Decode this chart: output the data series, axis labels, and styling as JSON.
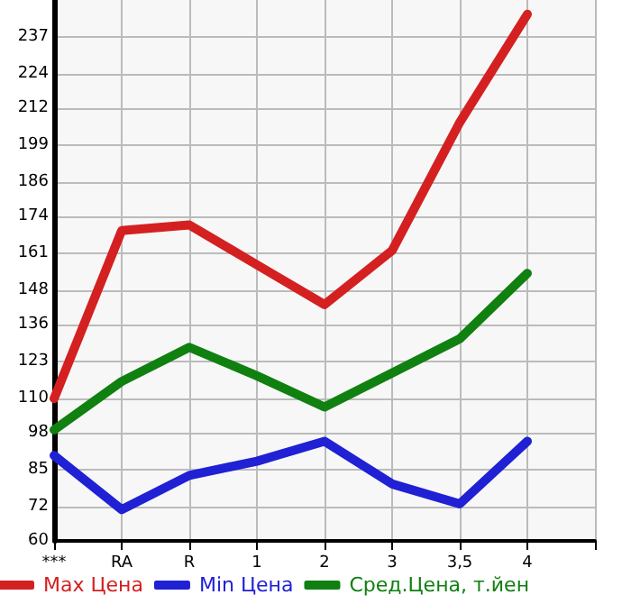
{
  "chart_data": {
    "type": "line",
    "categories": [
      "***",
      "RA",
      "R",
      "1",
      "2",
      "3",
      "3,5",
      "4",
      null
    ],
    "series": [
      {
        "name": "Max Цена",
        "color": "#d42020",
        "values": [
          110,
          169,
          171,
          157,
          143,
          162,
          207,
          245,
          null
        ]
      },
      {
        "name": "Min Цена",
        "color": "#2020d4",
        "values": [
          90,
          71,
          83,
          88,
          95,
          80,
          73,
          95,
          null
        ]
      },
      {
        "name": "Сред.Цена, т.йен",
        "color": "#108010",
        "values": [
          99,
          116,
          128,
          118,
          107,
          119,
          131,
          154,
          null
        ]
      }
    ],
    "ylim": [
      60,
      250
    ],
    "yticks": [
      60,
      72,
      85,
      98,
      110,
      123,
      136,
      148,
      161,
      174,
      186,
      199,
      212,
      224,
      237
    ],
    "grid": true,
    "legend": "bottom",
    "marker": "none",
    "line_style": "solid"
  }
}
